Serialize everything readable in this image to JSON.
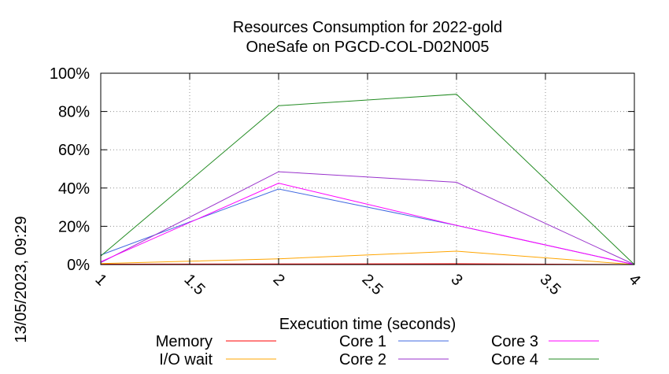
{
  "chart_data": {
    "type": "line",
    "title": "Resources Consumption for 2022-gold",
    "subtitle": "OneSafe on PGCD-COL-D02N005",
    "xlabel": "Execution time (seconds)",
    "ylabel": "",
    "side_label": "13/05/2023, 09:29",
    "x": [
      1,
      2,
      3,
      4
    ],
    "xlim": [
      1,
      4
    ],
    "ylim": [
      0,
      100
    ],
    "x_ticks": [
      "1",
      "1.5",
      "2",
      "2.5",
      "3",
      "3.5",
      "4"
    ],
    "y_ticks": [
      "0%",
      "20%",
      "40%",
      "60%",
      "80%",
      "100%"
    ],
    "grid": true,
    "legend_position": "bottom",
    "series": [
      {
        "name": "Memory",
        "color": "#ff0000",
        "values": [
          0.2,
          0.3,
          0.4,
          0
        ]
      },
      {
        "name": "I/O wait",
        "color": "#ffa500",
        "values": [
          0.5,
          3,
          7,
          0
        ]
      },
      {
        "name": "Core 1",
        "color": "#4169e1",
        "values": [
          5,
          39.5,
          20.5,
          0
        ]
      },
      {
        "name": "Core 2",
        "color": "#9932cc",
        "values": [
          1,
          48.5,
          43,
          0
        ]
      },
      {
        "name": "Core 3",
        "color": "#ff00ff",
        "values": [
          1.5,
          42.5,
          20.5,
          0
        ]
      },
      {
        "name": "Core 4",
        "color": "#228b22",
        "values": [
          4.5,
          83,
          89,
          0
        ]
      }
    ]
  }
}
